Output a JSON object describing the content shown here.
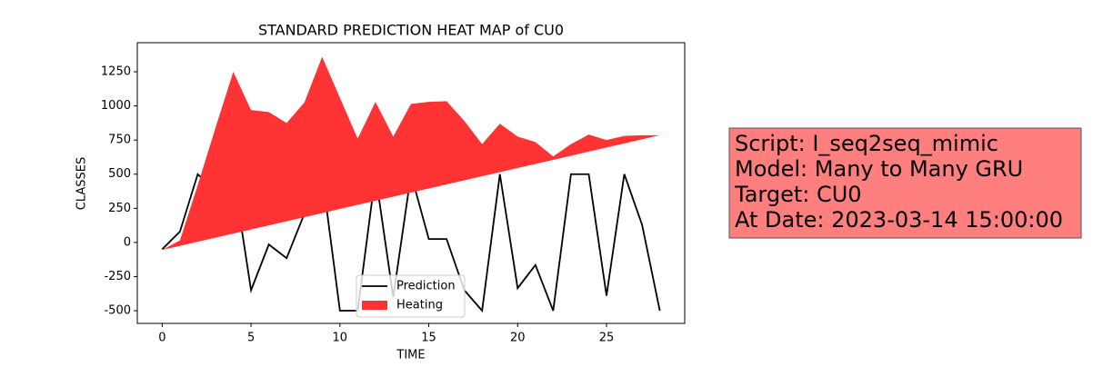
{
  "chart_data": {
    "type": "line",
    "title": "STANDARD PREDICTION HEAT MAP of CU0",
    "xlabel": "TIME",
    "ylabel": "CLASSES",
    "x": [
      0,
      1,
      2,
      3,
      4,
      5,
      6,
      7,
      8,
      9,
      10,
      11,
      12,
      13,
      14,
      15,
      16,
      17,
      18,
      19,
      20,
      21,
      22,
      23,
      24,
      25,
      26,
      27,
      28
    ],
    "xlim": [
      -1.4,
      29.4
    ],
    "xticks": [
      0,
      5,
      10,
      15,
      20,
      25
    ],
    "ylim": [
      -593,
      1463
    ],
    "yticks": [
      -500,
      -250,
      0,
      250,
      500,
      750,
      1000,
      1250
    ],
    "legend": "lower center",
    "series": [
      {
        "name": "Prediction",
        "color": "#000000",
        "values": [
          -50,
          80,
          500,
          375,
          500,
          -350,
          -15,
          -115,
          210,
          500,
          -500,
          -500,
          500,
          -400,
          500,
          25,
          25,
          -350,
          -500,
          500,
          -335,
          -165,
          -500,
          500,
          500,
          -390,
          500,
          130,
          -500
        ]
      },
      {
        "name": "Heating",
        "color": "#ff3333",
        "fill": true,
        "values": [
          -55,
          15,
          420,
          840,
          1250,
          970,
          955,
          875,
          1025,
          1360,
          1060,
          760,
          1030,
          775,
          1015,
          1030,
          1035,
          890,
          720,
          870,
          775,
          735,
          630,
          720,
          790,
          750,
          780,
          785,
          785
        ],
        "baseline": [
          -55,
          -25,
          5,
          35,
          65,
          95,
          125,
          155,
          185,
          215,
          245,
          275,
          305,
          335,
          365,
          395,
          425,
          455,
          485,
          515,
          545,
          575,
          605,
          635,
          665,
          695,
          725,
          755,
          785
        ]
      }
    ],
    "annotation": [
      "Script: I_seq2seq_mimic",
      "Model: Many to Many GRU",
      "Target: CU0",
      "At Date: 2023-03-14 15:00:00"
    ],
    "annotation_color": "#ff7f7f"
  }
}
